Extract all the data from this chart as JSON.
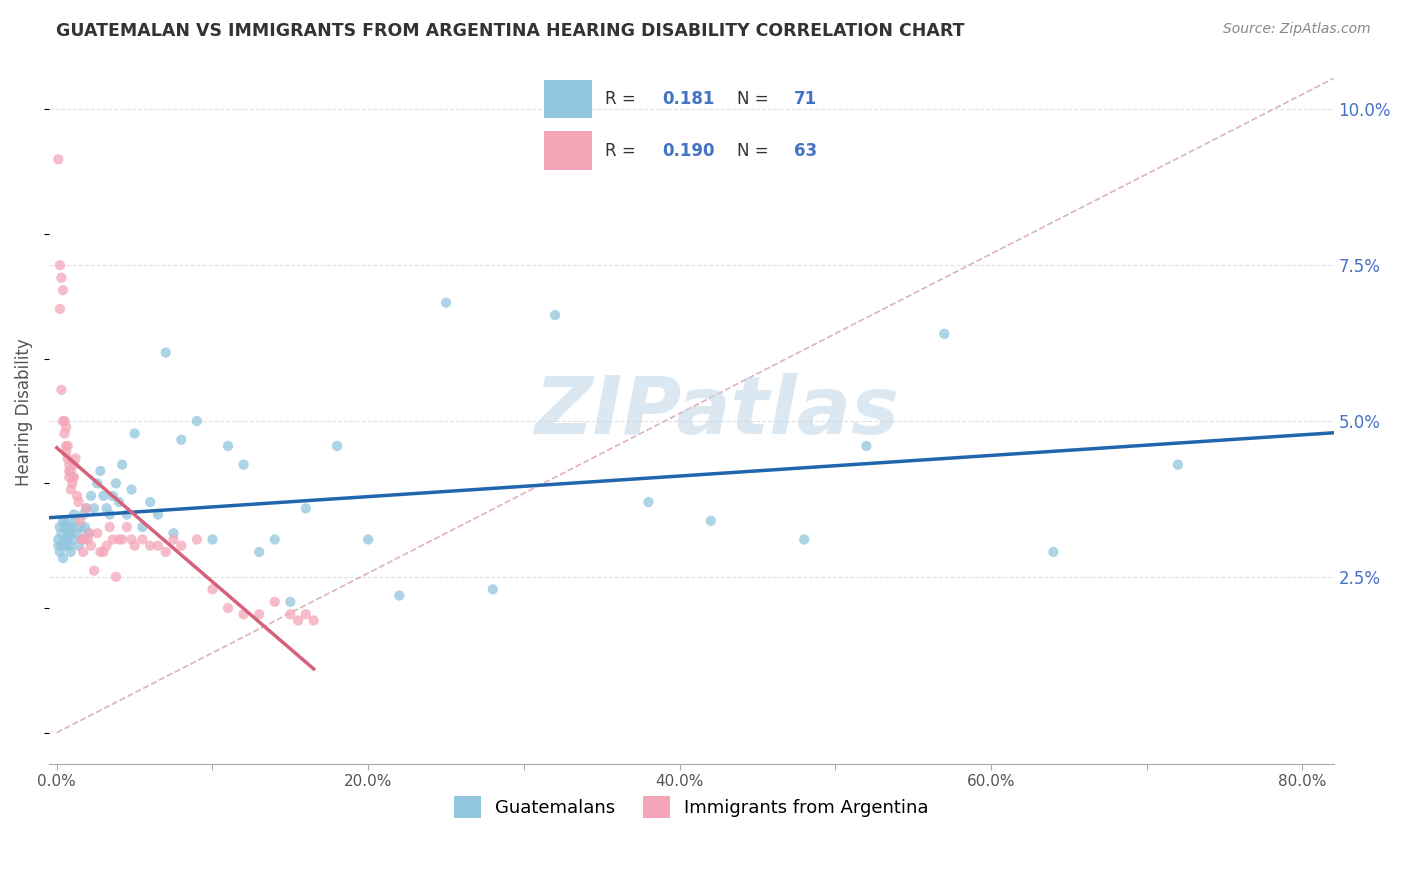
{
  "title": "GUATEMALAN VS IMMIGRANTS FROM ARGENTINA HEARING DISABILITY CORRELATION CHART",
  "source": "Source: ZipAtlas.com",
  "xlim": [
    -0.005,
    0.82
  ],
  "ylim": [
    -0.005,
    0.108
  ],
  "x_tick_vals": [
    0.0,
    0.1,
    0.2,
    0.3,
    0.4,
    0.5,
    0.6,
    0.7,
    0.8
  ],
  "x_tick_labels": [
    "0.0%",
    "",
    "20.0%",
    "",
    "40.0%",
    "",
    "60.0%",
    "",
    "80.0%"
  ],
  "y_tick_vals": [
    0.025,
    0.05,
    0.075,
    0.1
  ],
  "y_tick_labels": [
    "2.5%",
    "5.0%",
    "7.5%",
    "10.0%"
  ],
  "blue_R": "0.181",
  "blue_N": "71",
  "pink_R": "0.190",
  "pink_N": "63",
  "blue_color": "#92c5de",
  "pink_color": "#f4a6b8",
  "trend_blue_color": "#2166ac",
  "trend_pink_color": "#d6617a",
  "diag_color": "#d4a0a8",
  "watermark_color": "#c5d9e8",
  "grid_color": "#e0e0e0",
  "blue_points_x": [
    0.001,
    0.001,
    0.002,
    0.002,
    0.003,
    0.003,
    0.004,
    0.004,
    0.005,
    0.005,
    0.006,
    0.006,
    0.007,
    0.007,
    0.008,
    0.008,
    0.009,
    0.009,
    0.01,
    0.01,
    0.011,
    0.012,
    0.013,
    0.014,
    0.015,
    0.016,
    0.017,
    0.018,
    0.019,
    0.02,
    0.022,
    0.024,
    0.026,
    0.028,
    0.03,
    0.032,
    0.034,
    0.036,
    0.038,
    0.04,
    0.042,
    0.045,
    0.048,
    0.05,
    0.055,
    0.06,
    0.065,
    0.07,
    0.075,
    0.08,
    0.09,
    0.1,
    0.11,
    0.12,
    0.13,
    0.14,
    0.15,
    0.16,
    0.18,
    0.2,
    0.22,
    0.25,
    0.28,
    0.32,
    0.38,
    0.42,
    0.48,
    0.52,
    0.57,
    0.64,
    0.72
  ],
  "blue_points_y": [
    0.03,
    0.031,
    0.029,
    0.033,
    0.032,
    0.03,
    0.034,
    0.028,
    0.031,
    0.033,
    0.03,
    0.034,
    0.032,
    0.031,
    0.033,
    0.03,
    0.029,
    0.032,
    0.031,
    0.033,
    0.035,
    0.034,
    0.032,
    0.03,
    0.033,
    0.031,
    0.035,
    0.033,
    0.036,
    0.032,
    0.038,
    0.036,
    0.04,
    0.042,
    0.038,
    0.036,
    0.035,
    0.038,
    0.04,
    0.037,
    0.043,
    0.035,
    0.039,
    0.048,
    0.033,
    0.037,
    0.035,
    0.061,
    0.032,
    0.047,
    0.05,
    0.031,
    0.046,
    0.043,
    0.029,
    0.031,
    0.021,
    0.036,
    0.046,
    0.031,
    0.022,
    0.069,
    0.023,
    0.067,
    0.037,
    0.034,
    0.031,
    0.046,
    0.064,
    0.029,
    0.043
  ],
  "pink_points_x": [
    0.001,
    0.002,
    0.002,
    0.003,
    0.003,
    0.004,
    0.004,
    0.005,
    0.005,
    0.006,
    0.006,
    0.006,
    0.007,
    0.007,
    0.008,
    0.008,
    0.008,
    0.009,
    0.009,
    0.01,
    0.01,
    0.011,
    0.011,
    0.012,
    0.013,
    0.014,
    0.015,
    0.016,
    0.017,
    0.018,
    0.019,
    0.02,
    0.021,
    0.022,
    0.024,
    0.026,
    0.028,
    0.03,
    0.032,
    0.034,
    0.036,
    0.038,
    0.04,
    0.042,
    0.045,
    0.048,
    0.05,
    0.055,
    0.06,
    0.065,
    0.07,
    0.075,
    0.08,
    0.09,
    0.1,
    0.11,
    0.12,
    0.13,
    0.14,
    0.15,
    0.155,
    0.16,
    0.165
  ],
  "pink_points_y": [
    0.092,
    0.075,
    0.068,
    0.073,
    0.055,
    0.071,
    0.05,
    0.05,
    0.048,
    0.046,
    0.049,
    0.045,
    0.044,
    0.046,
    0.042,
    0.043,
    0.041,
    0.039,
    0.042,
    0.041,
    0.04,
    0.043,
    0.041,
    0.044,
    0.038,
    0.037,
    0.034,
    0.031,
    0.029,
    0.031,
    0.036,
    0.031,
    0.032,
    0.03,
    0.026,
    0.032,
    0.029,
    0.029,
    0.03,
    0.033,
    0.031,
    0.025,
    0.031,
    0.031,
    0.033,
    0.031,
    0.03,
    0.031,
    0.03,
    0.03,
    0.029,
    0.031,
    0.03,
    0.031,
    0.023,
    0.02,
    0.019,
    0.019,
    0.021,
    0.019,
    0.018,
    0.019,
    0.018
  ]
}
